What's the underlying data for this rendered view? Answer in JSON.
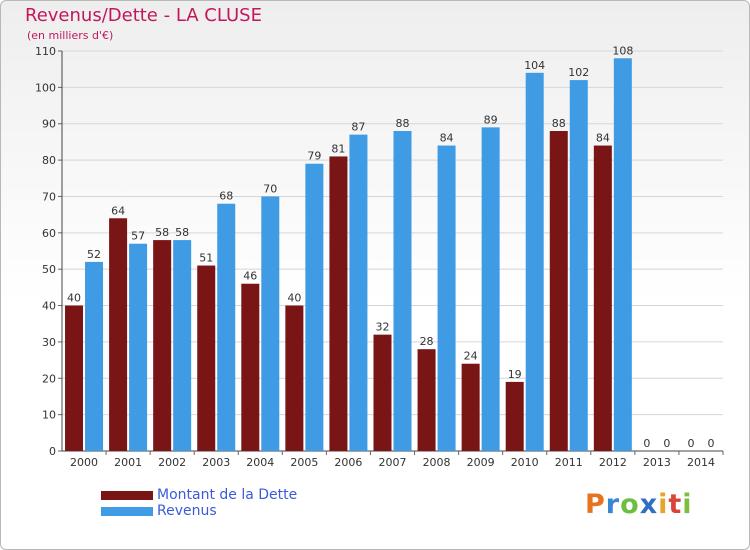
{
  "title": "Revenus/Dette - LA CLUSE",
  "subtitle": "(en milliers d'€)",
  "logo": "Proxiti",
  "colors": {
    "dette": "#7a1516",
    "revenus": "#3f9be4",
    "title": "#c2185b",
    "legend_text": "#3a5bd9"
  },
  "chart_data": {
    "type": "bar",
    "title": "Revenus/Dette - LA CLUSE",
    "subtitle": "(en milliers d'€)",
    "categories": [
      "2000",
      "2001",
      "2002",
      "2003",
      "2004",
      "2005",
      "2006",
      "2007",
      "2008",
      "2009",
      "2010",
      "2011",
      "2012",
      "2013",
      "2014"
    ],
    "series": [
      {
        "name": "Montant de la Dette",
        "values": [
          40,
          64,
          58,
          51,
          46,
          40,
          81,
          32,
          28,
          24,
          19,
          88,
          84,
          0,
          0
        ]
      },
      {
        "name": "Revenus",
        "values": [
          52,
          57,
          58,
          68,
          70,
          79,
          87,
          88,
          84,
          89,
          104,
          102,
          108,
          0,
          0
        ]
      }
    ],
    "ylim": [
      0,
      110
    ],
    "yticks": [
      0,
      10,
      20,
      30,
      40,
      50,
      60,
      70,
      80,
      90,
      100,
      110
    ],
    "grid": true,
    "legend_position": "bottom-left"
  }
}
